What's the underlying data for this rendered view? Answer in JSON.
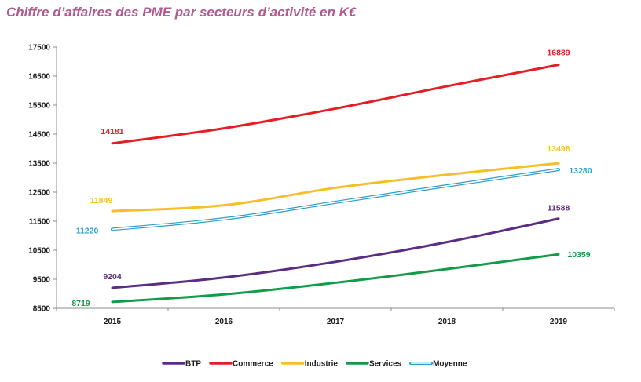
{
  "chart_data": {
    "type": "line",
    "title": "Chiffre d’affaires des PME par secteurs d’activité en K€",
    "xlabel": "",
    "ylabel": "",
    "categories": [
      "2015",
      "2016",
      "2017",
      "2018",
      "2019"
    ],
    "ylim": [
      8500,
      17500
    ],
    "yticks": [
      8500,
      9500,
      10500,
      11500,
      12500,
      13500,
      14500,
      15500,
      16500,
      17500
    ],
    "grid": false,
    "legend_position": "bottom",
    "series": [
      {
        "name": "BTP",
        "color": "#5b2c83",
        "style": "solid",
        "values": [
          9204,
          9560,
          10100,
          10780,
          11588
        ],
        "labels": [
          "9204",
          "",
          "",
          "",
          "11588"
        ]
      },
      {
        "name": "Commerce",
        "color": "#e31e24",
        "style": "solid",
        "values": [
          14181,
          14700,
          15380,
          16150,
          16889
        ],
        "labels": [
          "14181",
          "",
          "",
          "",
          "16889"
        ]
      },
      {
        "name": "Industrie",
        "color": "#f6bf2a",
        "style": "solid",
        "values": [
          11849,
          12050,
          12650,
          13100,
          13498
        ],
        "labels": [
          "11849",
          "",
          "",
          "",
          "13498"
        ]
      },
      {
        "name": "Services",
        "color": "#129b48",
        "style": "solid",
        "values": [
          8719,
          8980,
          9380,
          9850,
          10359
        ],
        "labels": [
          "8719",
          "",
          "",
          "",
          "10359"
        ]
      },
      {
        "name": "Moyenne",
        "color": "#2f9ec9",
        "style": "double",
        "values": [
          11220,
          11580,
          12150,
          12720,
          13280
        ],
        "labels": [
          "11220",
          "",
          "",
          "",
          "13280"
        ]
      }
    ]
  }
}
